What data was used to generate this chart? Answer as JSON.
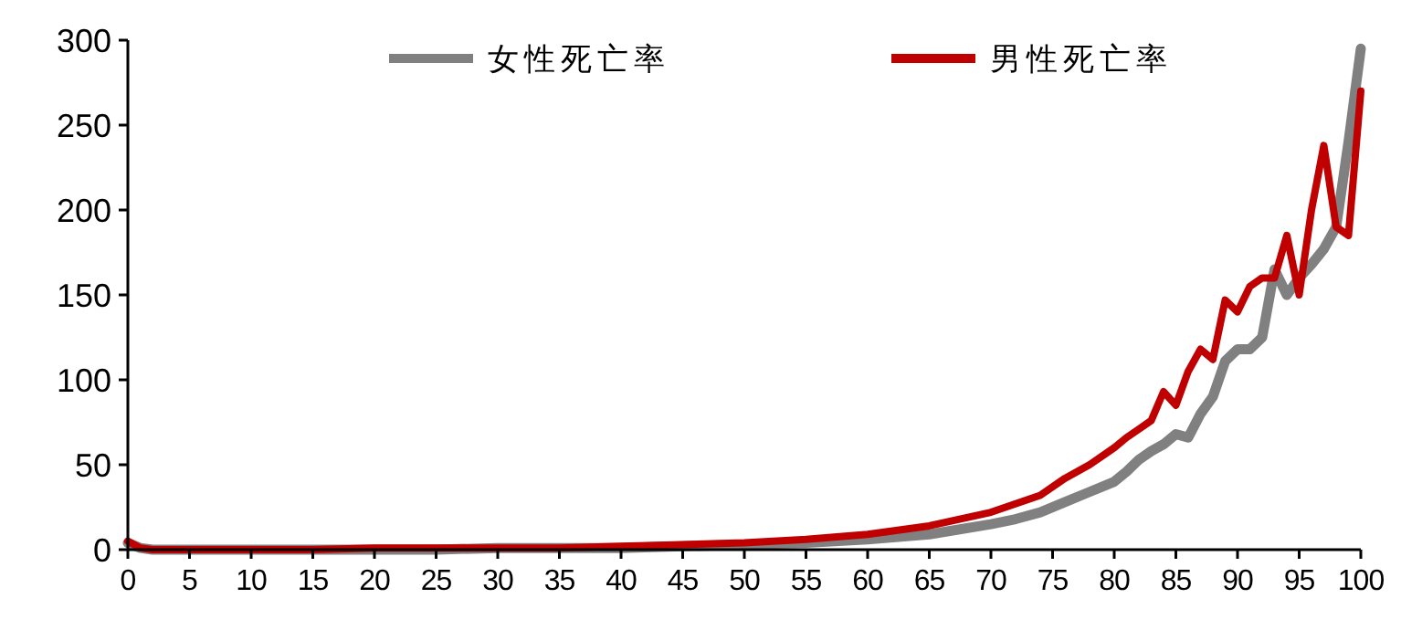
{
  "chart_data": {
    "type": "line",
    "x": [
      0,
      1,
      2,
      5,
      10,
      15,
      20,
      25,
      30,
      35,
      40,
      45,
      50,
      55,
      60,
      65,
      70,
      72,
      74,
      76,
      78,
      80,
      81,
      82,
      83,
      84,
      85,
      86,
      87,
      88,
      89,
      90,
      91,
      92,
      93,
      94,
      95,
      96,
      97,
      98,
      99,
      100
    ],
    "series": [
      {
        "name": "女性死亡率",
        "color": "#808080",
        "values": [
          4,
          1,
          0,
          0,
          0,
          0,
          0,
          0,
          1,
          1,
          1,
          2,
          3,
          4,
          6,
          9,
          15,
          18,
          22,
          28,
          34,
          40,
          46,
          53,
          58,
          62,
          68,
          66,
          80,
          90,
          111,
          118,
          118,
          125,
          165,
          150,
          160,
          168,
          177,
          190,
          240,
          295
        ]
      },
      {
        "name": "男性死亡率",
        "color": "#c00000",
        "values": [
          5,
          1,
          0,
          0,
          0,
          0,
          1,
          1,
          1,
          1,
          2,
          3,
          4,
          6,
          9,
          14,
          22,
          27,
          32,
          42,
          50,
          60,
          66,
          71,
          76,
          93,
          85,
          105,
          118,
          112,
          147,
          140,
          155,
          160,
          160,
          185,
          150,
          200,
          238,
          190,
          185,
          270
        ]
      }
    ],
    "xlim": [
      0,
      100
    ],
    "xticks": [
      0,
      5,
      10,
      15,
      20,
      25,
      30,
      35,
      40,
      45,
      50,
      55,
      60,
      65,
      70,
      75,
      80,
      85,
      90,
      95,
      100
    ],
    "ylim": [
      0,
      300
    ],
    "yticks": [
      0,
      50,
      100,
      150,
      200,
      250,
      300
    ],
    "grid": false,
    "legend": "top",
    "marker": "none",
    "line_style": "solid"
  }
}
